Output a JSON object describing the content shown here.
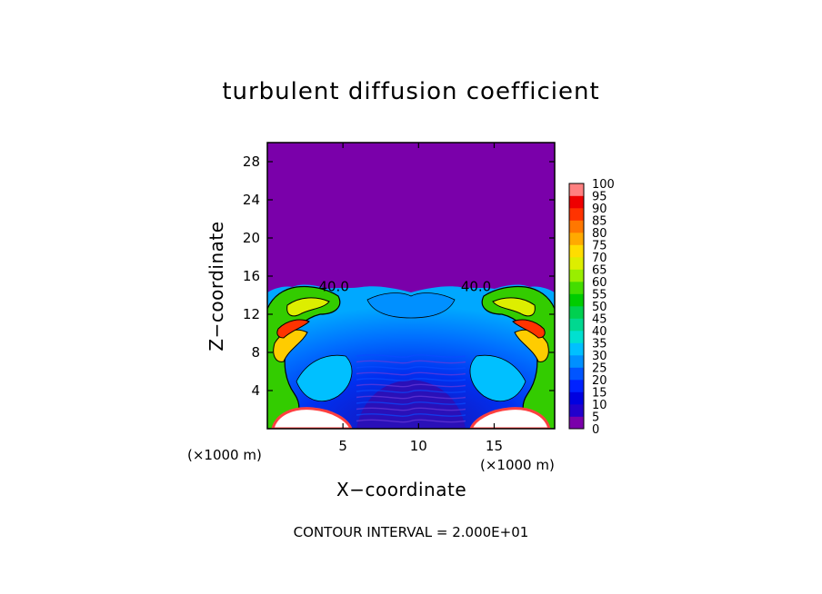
{
  "chart_data": {
    "type": "heatmap",
    "title": "turbulent diffusion coefficient",
    "xlabel": "X−coordinate",
    "ylabel": "Z−coordinate",
    "x_unit_label_left": "(×1000 m)",
    "x_unit_label_right": "(×1000 m)",
    "xlim": [
      0,
      19
    ],
    "ylim": [
      0,
      30
    ],
    "x_ticks": [
      5,
      10,
      15
    ],
    "y_ticks": [
      4,
      8,
      12,
      16,
      20,
      24,
      28
    ],
    "colorbar": {
      "levels": [
        0,
        5,
        10,
        15,
        20,
        25,
        30,
        35,
        40,
        45,
        50,
        55,
        60,
        65,
        70,
        75,
        80,
        85,
        90,
        95,
        100
      ],
      "labels": [
        "0",
        "5",
        "10",
        "15",
        "20",
        "25",
        "30",
        "35",
        "40",
        "45",
        "50",
        "55",
        "60",
        "65",
        "70",
        "75",
        "80",
        "85",
        "90",
        "95",
        "100"
      ],
      "colors": [
        "#7a00aa",
        "#2200cc",
        "#0000e0",
        "#0022ff",
        "#0055ff",
        "#0090ff",
        "#00c0ff",
        "#00e0d0",
        "#00d890",
        "#00d050",
        "#00cc00",
        "#44dd00",
        "#99ee00",
        "#ddee00",
        "#ffdd00",
        "#ffaa00",
        "#ff7700",
        "#ff3300",
        "#ee0000",
        "#ff8080"
      ],
      "placement": "right"
    },
    "contour_labels": [
      {
        "text": "40.0",
        "x": 4.4,
        "z": 14.9
      },
      {
        "text": "40.0",
        "x": 13.8,
        "z": 14.9
      }
    ],
    "contour_interval_text": "CONTOUR INTERVAL = 2.000E+01"
  }
}
